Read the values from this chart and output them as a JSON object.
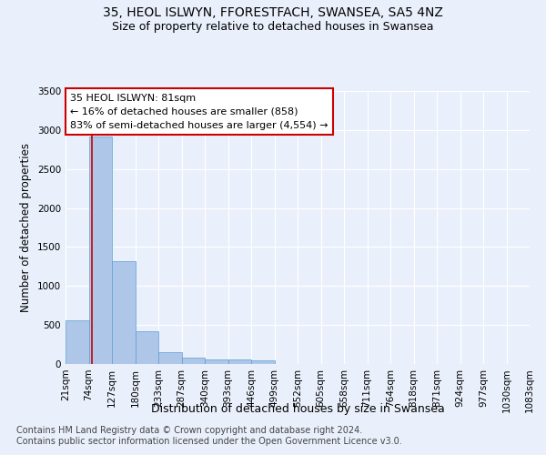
{
  "title1": "35, HEOL ISLWYN, FFORESTFACH, SWANSEA, SA5 4NZ",
  "title2": "Size of property relative to detached houses in Swansea",
  "xlabel": "Distribution of detached houses by size in Swansea",
  "ylabel": "Number of detached properties",
  "bar_values": [
    560,
    2920,
    1320,
    415,
    155,
    85,
    60,
    55,
    45,
    0,
    0,
    0,
    0,
    0,
    0,
    0,
    0,
    0,
    0,
    0
  ],
  "bar_labels": [
    "21sqm",
    "74sqm",
    "127sqm",
    "180sqm",
    "233sqm",
    "287sqm",
    "340sqm",
    "393sqm",
    "446sqm",
    "499sqm",
    "552sqm",
    "605sqm",
    "658sqm",
    "711sqm",
    "764sqm",
    "818sqm",
    "871sqm",
    "924sqm",
    "977sqm",
    "1030sqm",
    "1083sqm"
  ],
  "bar_color": "#aec6e8",
  "bar_edge_color": "#5a9fd4",
  "annotation_text": "35 HEOL ISLWYN: 81sqm\n← 16% of detached houses are smaller (858)\n83% of semi-detached houses are larger (4,554) →",
  "annotation_box_color": "#ffffff",
  "annotation_box_edgecolor": "#cc0000",
  "vline_color": "#cc0000",
  "ylim": [
    0,
    3500
  ],
  "yticks": [
    0,
    500,
    1000,
    1500,
    2000,
    2500,
    3000,
    3500
  ],
  "footer1": "Contains HM Land Registry data © Crown copyright and database right 2024.",
  "footer2": "Contains public sector information licensed under the Open Government Licence v3.0.",
  "bg_color": "#eaf0fb",
  "plot_bg_color": "#eaf0fb",
  "grid_color": "#ffffff",
  "title1_fontsize": 10,
  "title2_fontsize": 9,
  "xlabel_fontsize": 9,
  "ylabel_fontsize": 8.5,
  "tick_fontsize": 7.5,
  "annotation_fontsize": 8,
  "footer_fontsize": 7
}
